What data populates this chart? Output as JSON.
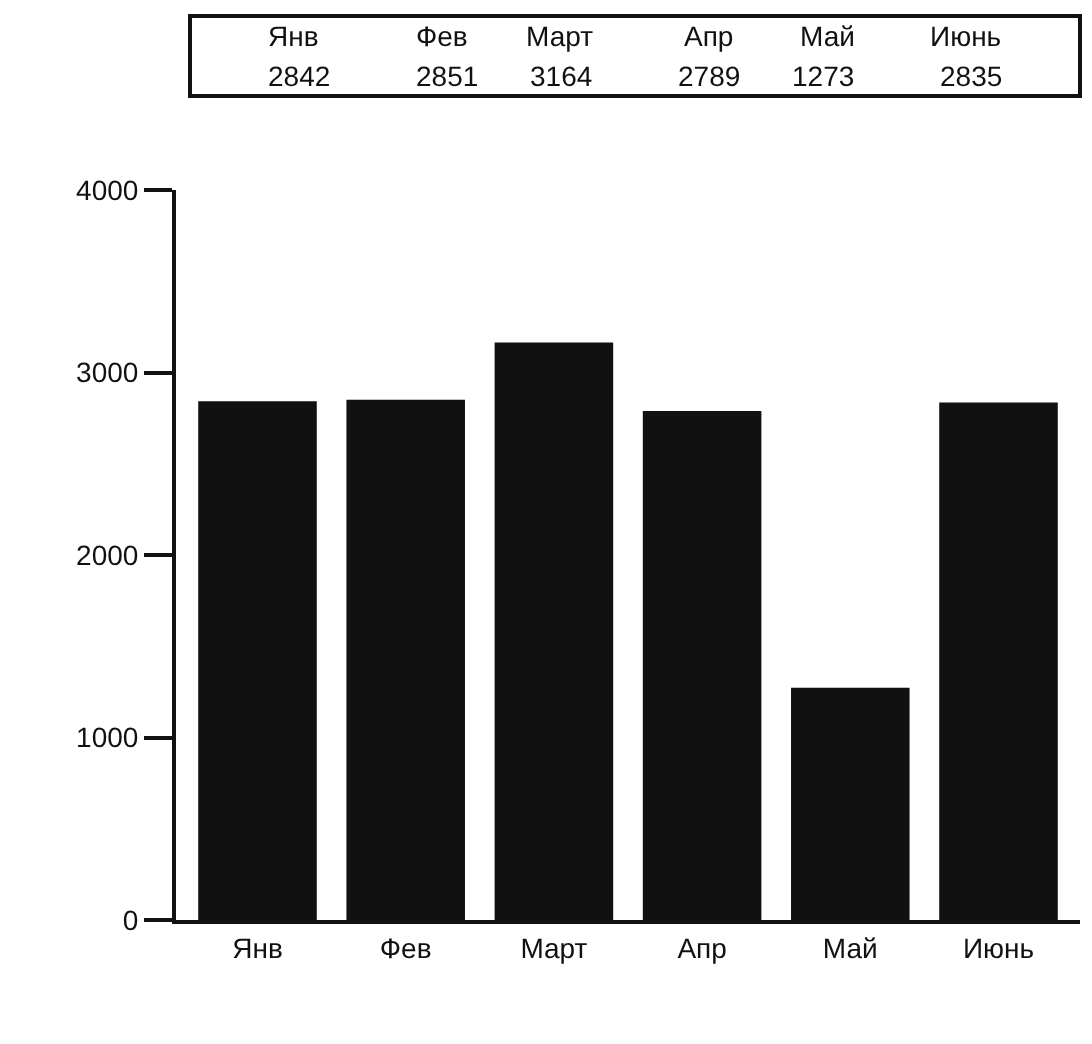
{
  "chart_data": {
    "type": "bar",
    "categories": [
      "Янв",
      "Фев",
      "Март",
      "Апр",
      "Май",
      "Июнь"
    ],
    "values": [
      2842,
      2851,
      3164,
      2789,
      1273,
      2835
    ],
    "color": "#111111",
    "ylim": [
      0,
      4000
    ],
    "yticks": [
      0,
      1000,
      2000,
      3000,
      4000
    ],
    "data_labels": true
  }
}
